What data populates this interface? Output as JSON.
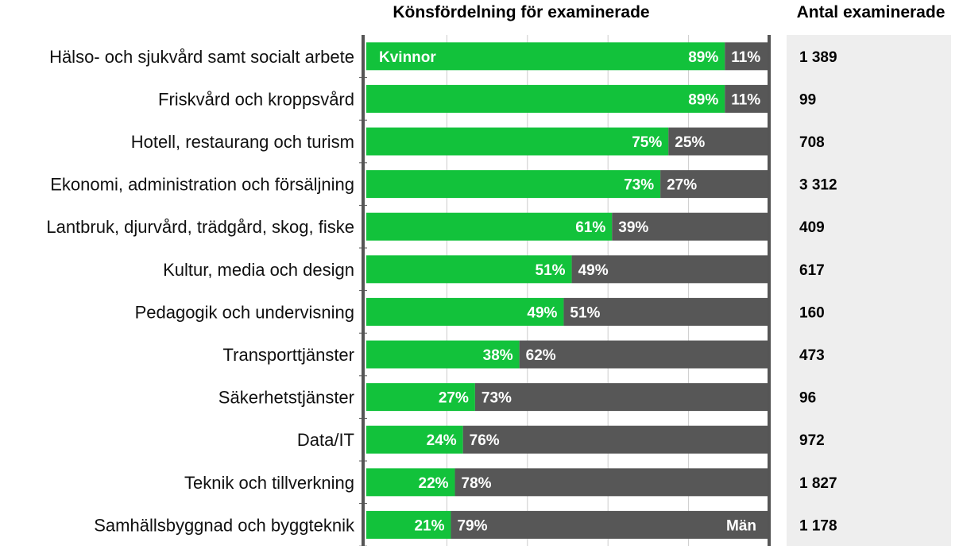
{
  "chart_data": {
    "type": "bar",
    "stacked": true,
    "orientation": "horizontal",
    "title": "Könsfördelning för examinerade",
    "count_header": "Antal examinerade",
    "categories": [
      "Hälso- och sjukvård samt socialt arbete",
      "Friskvård och kroppsvård",
      "Hotell, restaurang och turism",
      "Ekonomi, administration och försäljning",
      "Lantbruk, djurvård, trädgård, skog, fiske",
      "Kultur, media och design",
      "Pedagogik och undervisning",
      "Transporttjänster",
      "Säkerhetstjänster",
      "Data/IT",
      "Teknik och tillverkning",
      "Samhällsbyggnad och byggteknik"
    ],
    "series": [
      {
        "name": "Kvinnor",
        "color": "#12c23b",
        "values": [
          89,
          89,
          75,
          73,
          61,
          51,
          49,
          38,
          27,
          24,
          22,
          21
        ],
        "labels": [
          "89%",
          "89%",
          "75%",
          "73%",
          "61%",
          "51%",
          "49%",
          "38%",
          "27%",
          "24%",
          "22%",
          "21%"
        ]
      },
      {
        "name": "Män",
        "color": "#575757",
        "values": [
          11,
          11,
          25,
          27,
          39,
          49,
          51,
          62,
          73,
          76,
          78,
          79
        ],
        "labels": [
          "11%",
          "11%",
          "25%",
          "27%",
          "39%",
          "49%",
          "51%",
          "62%",
          "73%",
          "76%",
          "78%",
          "79%"
        ]
      }
    ],
    "counts": [
      "1 389",
      "99",
      "708",
      "3 312",
      "409",
      "617",
      "160",
      "473",
      "96",
      "972",
      "1 827",
      "1 178"
    ],
    "xlim": [
      0,
      100
    ],
    "grid": true,
    "count_panel_color": "#eeeeee"
  }
}
